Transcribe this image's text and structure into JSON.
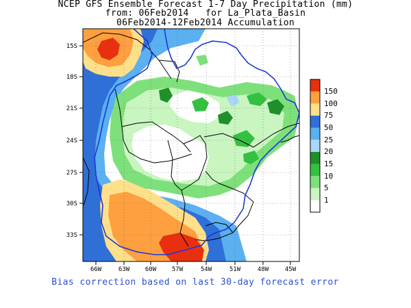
{
  "title": {
    "line1": "NCEP GFS Ensemble Forecast 1-7 Day Precipitation (mm)",
    "line2": "from: 06Feb2014   for La_Plata_Basin",
    "line3": "06Feb2014-12Feb2014 Accumulation"
  },
  "footer": "Bias correction based on last 30-day forecast error",
  "axes": {
    "y_ticks": [
      "15S",
      "18S",
      "21S",
      "24S",
      "27S",
      "30S",
      "33S"
    ],
    "x_ticks": [
      "66W",
      "63W",
      "60W",
      "57W",
      "54W",
      "51W",
      "48W",
      "45W"
    ]
  },
  "legend": {
    "levels": [
      "1",
      "5",
      "10",
      "15",
      "20",
      "25",
      "50",
      "75",
      "100",
      "150"
    ],
    "colors": [
      "#ffffff",
      "#c8f5c0",
      "#7ee07a",
      "#34c040",
      "#1e8f2a",
      "#a9d7f5",
      "#5ab0f0",
      "#2f6fd8",
      "#ffe08a",
      "#ffa040",
      "#e83010"
    ]
  },
  "colors": {
    "basin_outline": "#1e35d8",
    "borders": "#000000",
    "frame": "#000000"
  }
}
